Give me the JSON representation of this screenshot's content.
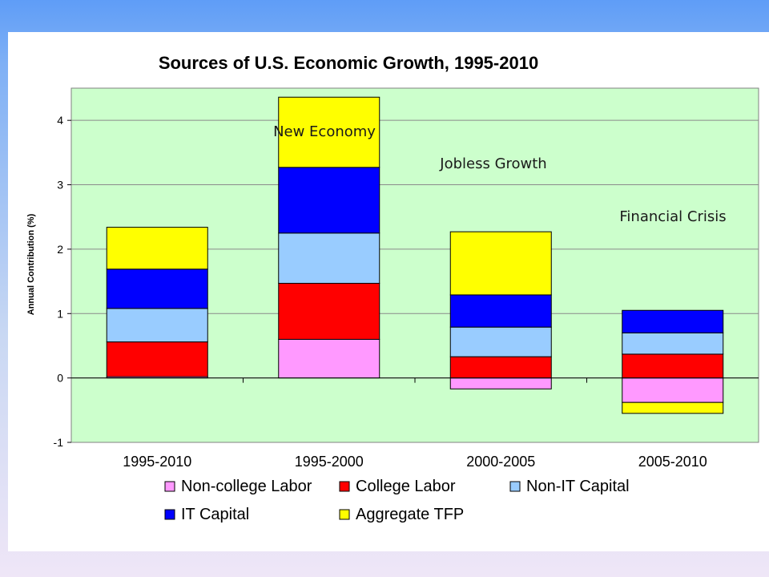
{
  "chart_data": {
    "type": "bar",
    "stacked": true,
    "title": "Sources of U.S. Economic Growth, 1995-2010",
    "ylabel": "Annual Contribution  (%)",
    "xlabel": "",
    "ylim": [
      -1,
      4.5
    ],
    "yticks": [
      -1,
      0,
      1,
      2,
      3,
      4
    ],
    "grid": true,
    "legend_position": "bottom",
    "plot_background": "#ccffcc",
    "categories": [
      "1995-2010",
      "1995-2000",
      "2000-2005",
      "2005-2010"
    ],
    "series": [
      {
        "name": "Non-college Labor",
        "color": "#ff99ff",
        "values": [
          0.02,
          0.6,
          -0.17,
          -0.38
        ]
      },
      {
        "name": "College Labor",
        "color": "#ff0000",
        "values": [
          0.54,
          0.87,
          0.33,
          0.37
        ]
      },
      {
        "name": "Non-IT Capital",
        "color": "#99ccff",
        "values": [
          0.52,
          0.78,
          0.46,
          0.33
        ]
      },
      {
        "name": "IT Capital",
        "color": "#0000ff",
        "values": [
          0.61,
          1.02,
          0.5,
          0.35
        ]
      },
      {
        "name": "Aggregate TFP",
        "color": "#ffff00",
        "values": [
          0.65,
          1.09,
          0.98,
          -0.17
        ]
      }
    ],
    "annotations": [
      {
        "text": "New Economy",
        "category": "1995-2000"
      },
      {
        "text": "Jobless Growth",
        "category": "2000-2005"
      },
      {
        "text": "Financial Crisis",
        "category": "2005-2010"
      }
    ]
  }
}
